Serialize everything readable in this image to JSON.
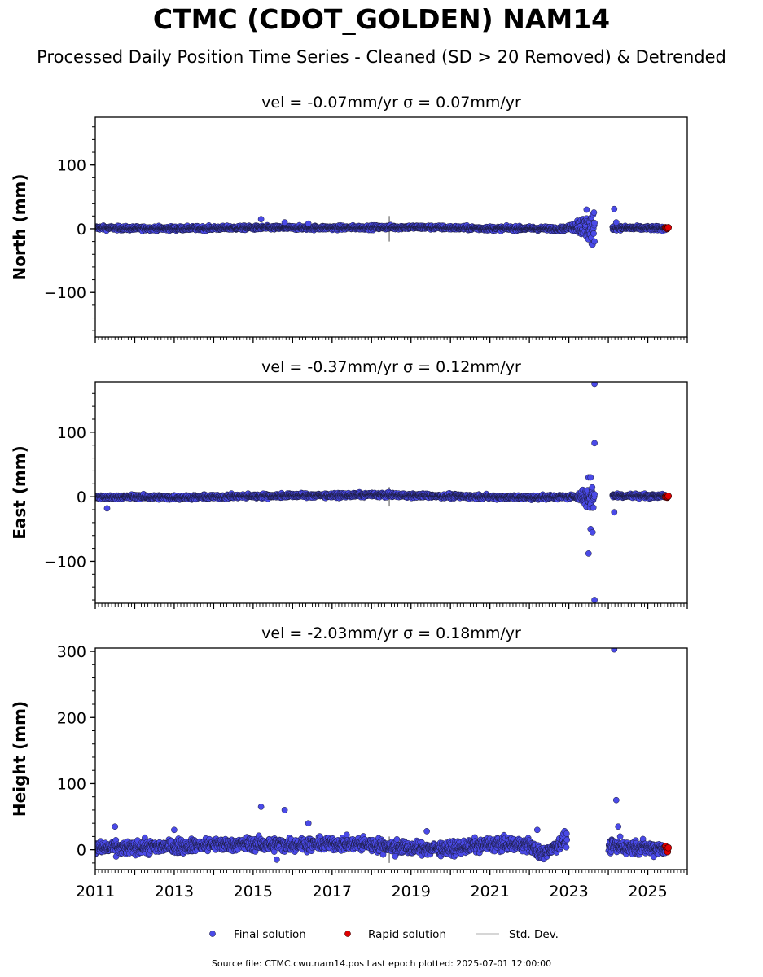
{
  "title": "CTMC (CDOT_GOLDEN) NAM14",
  "subtitle": "Processed Daily Position Time Series - Cleaned (SD > 20 Removed) & Detrended",
  "footer": "Source file: CTMC.cwu.nam14.pos  Last epoch plotted: 2025-07-01 12:00:00",
  "colors": {
    "final": "#4a4ae8",
    "rapid": "#e00000",
    "stddev": "#c8c8c8",
    "edge": "#1a1a3a"
  },
  "chart_data": {
    "type": "scatter",
    "x_axis": {
      "type": "date",
      "range": [
        "2011-01-01",
        "2026-01-01"
      ],
      "tick_labels": [
        "2011",
        "2013",
        "2015",
        "2017",
        "2019",
        "2021",
        "2023",
        "2025"
      ],
      "minor_ticks": "monthly"
    },
    "legend": {
      "placement": "bottom-center",
      "entries": [
        "Final solution",
        "Rapid solution",
        "Std. Dev."
      ]
    },
    "panels": [
      {
        "title": "vel = -0.07mm/yr   σ = 0.07mm/yr",
        "ylabel": "North (mm)",
        "ylim": [
          -170,
          175
        ],
        "yticks": [
          -100,
          0,
          100
        ],
        "base": [
          [
            2011.0,
            1.5
          ],
          [
            2012.0,
            0.5
          ],
          [
            2013.0,
            0.5
          ],
          [
            2014.0,
            1.0
          ],
          [
            2015.0,
            1.5
          ],
          [
            2016.0,
            1.5
          ],
          [
            2017.0,
            1.5
          ],
          [
            2018.0,
            2.0
          ],
          [
            2019.0,
            2.5
          ],
          [
            2020.0,
            1.5
          ],
          [
            2021.0,
            0.5
          ],
          [
            2022.0,
            0.5
          ],
          [
            2022.9,
            0.0
          ],
          [
            2023.2,
            5.0
          ],
          [
            2023.6,
            0.0
          ],
          [
            2024.1,
            1.5
          ],
          [
            2025.5,
            0.5
          ]
        ],
        "noise": 3,
        "gap": [
          2023.65,
          2024.1
        ],
        "outliers": [
          [
            2015.2,
            15
          ],
          [
            2015.8,
            10
          ],
          [
            2016.4,
            8
          ],
          [
            2023.45,
            30
          ],
          [
            2023.6,
            -25
          ],
          [
            2023.65,
            -20
          ],
          [
            2024.15,
            31
          ],
          [
            2024.2,
            10
          ]
        ],
        "burst": [
          2023.0,
          2023.65,
          25
        ],
        "rapid": [
          [
            2025.45,
            2
          ],
          [
            2025.47,
            1
          ],
          [
            2025.49,
            0
          ],
          [
            2025.5,
            1
          ],
          [
            2025.52,
            2
          ]
        ],
        "stddev_spike": [
          2018.45,
          20
        ]
      },
      {
        "title": "vel = -0.37mm/yr   σ = 0.12mm/yr",
        "ylabel": "East (mm)",
        "ylim": [
          -165,
          178
        ],
        "yticks": [
          -100,
          0,
          100
        ],
        "base": [
          [
            2011.0,
            -1.0
          ],
          [
            2012.0,
            0.0
          ],
          [
            2013.0,
            -1.0
          ],
          [
            2014.0,
            0.0
          ],
          [
            2015.0,
            1.0
          ],
          [
            2016.0,
            2.0
          ],
          [
            2017.0,
            2.0
          ],
          [
            2018.0,
            3.0
          ],
          [
            2019.0,
            2.0
          ],
          [
            2020.0,
            1.0
          ],
          [
            2021.0,
            0.0
          ],
          [
            2022.0,
            -1.0
          ],
          [
            2023.0,
            0.0
          ],
          [
            2023.6,
            0.0
          ],
          [
            2024.1,
            2.0
          ],
          [
            2025.5,
            1.0
          ]
        ],
        "noise": 3,
        "gap": [
          2023.65,
          2024.1
        ],
        "outliers": [
          [
            2011.3,
            -18
          ],
          [
            2023.5,
            -88
          ],
          [
            2023.55,
            -50
          ],
          [
            2023.6,
            -55
          ],
          [
            2023.65,
            83
          ],
          [
            2023.65,
            175
          ],
          [
            2023.65,
            -160
          ],
          [
            2023.5,
            30
          ],
          [
            2023.55,
            30
          ],
          [
            2024.15,
            -24
          ]
        ],
        "burst": [
          2023.2,
          2023.65,
          25
        ],
        "rapid": [
          [
            2025.45,
            0
          ],
          [
            2025.47,
            1
          ],
          [
            2025.49,
            -1
          ],
          [
            2025.5,
            0
          ],
          [
            2025.52,
            1
          ]
        ],
        "stddev_spike": [
          2018.45,
          15
        ]
      },
      {
        "title": "vel = -2.03mm/yr   σ = 0.18mm/yr",
        "ylabel": "Height (mm)",
        "ylim": [
          -30,
          305
        ],
        "yticks": [
          0,
          100,
          200,
          300
        ],
        "base": [
          [
            2011.0,
            2.0
          ],
          [
            2012.0,
            3.0
          ],
          [
            2013.0,
            5.0
          ],
          [
            2014.0,
            8.0
          ],
          [
            2015.0,
            8.0
          ],
          [
            2016.0,
            8.0
          ],
          [
            2017.0,
            9.0
          ],
          [
            2018.0,
            8.0
          ],
          [
            2019.0,
            2.0
          ],
          [
            2020.0,
            2.0
          ],
          [
            2021.0,
            8.0
          ],
          [
            2022.0,
            8.0
          ],
          [
            2022.3,
            -8.0
          ],
          [
            2022.9,
            15.0
          ],
          [
            2024.0,
            5.0
          ],
          [
            2025.5,
            2.0
          ]
        ],
        "noise": 9,
        "gap": [
          2022.95,
          2024.0
        ],
        "outliers": [
          [
            2011.5,
            35
          ],
          [
            2013.0,
            30
          ],
          [
            2015.2,
            65
          ],
          [
            2015.8,
            60
          ],
          [
            2016.4,
            40
          ],
          [
            2015.6,
            -15
          ],
          [
            2018.6,
            -10
          ],
          [
            2019.4,
            28
          ],
          [
            2022.2,
            30
          ],
          [
            2024.15,
            303
          ],
          [
            2024.2,
            75
          ],
          [
            2024.25,
            35
          ],
          [
            2024.3,
            20
          ]
        ],
        "burst": null,
        "rapid": [
          [
            2025.45,
            5
          ],
          [
            2025.47,
            2
          ],
          [
            2025.49,
            0
          ],
          [
            2025.5,
            -3
          ],
          [
            2025.52,
            3
          ]
        ],
        "stddev_spike": [
          2018.45,
          20
        ]
      }
    ]
  }
}
